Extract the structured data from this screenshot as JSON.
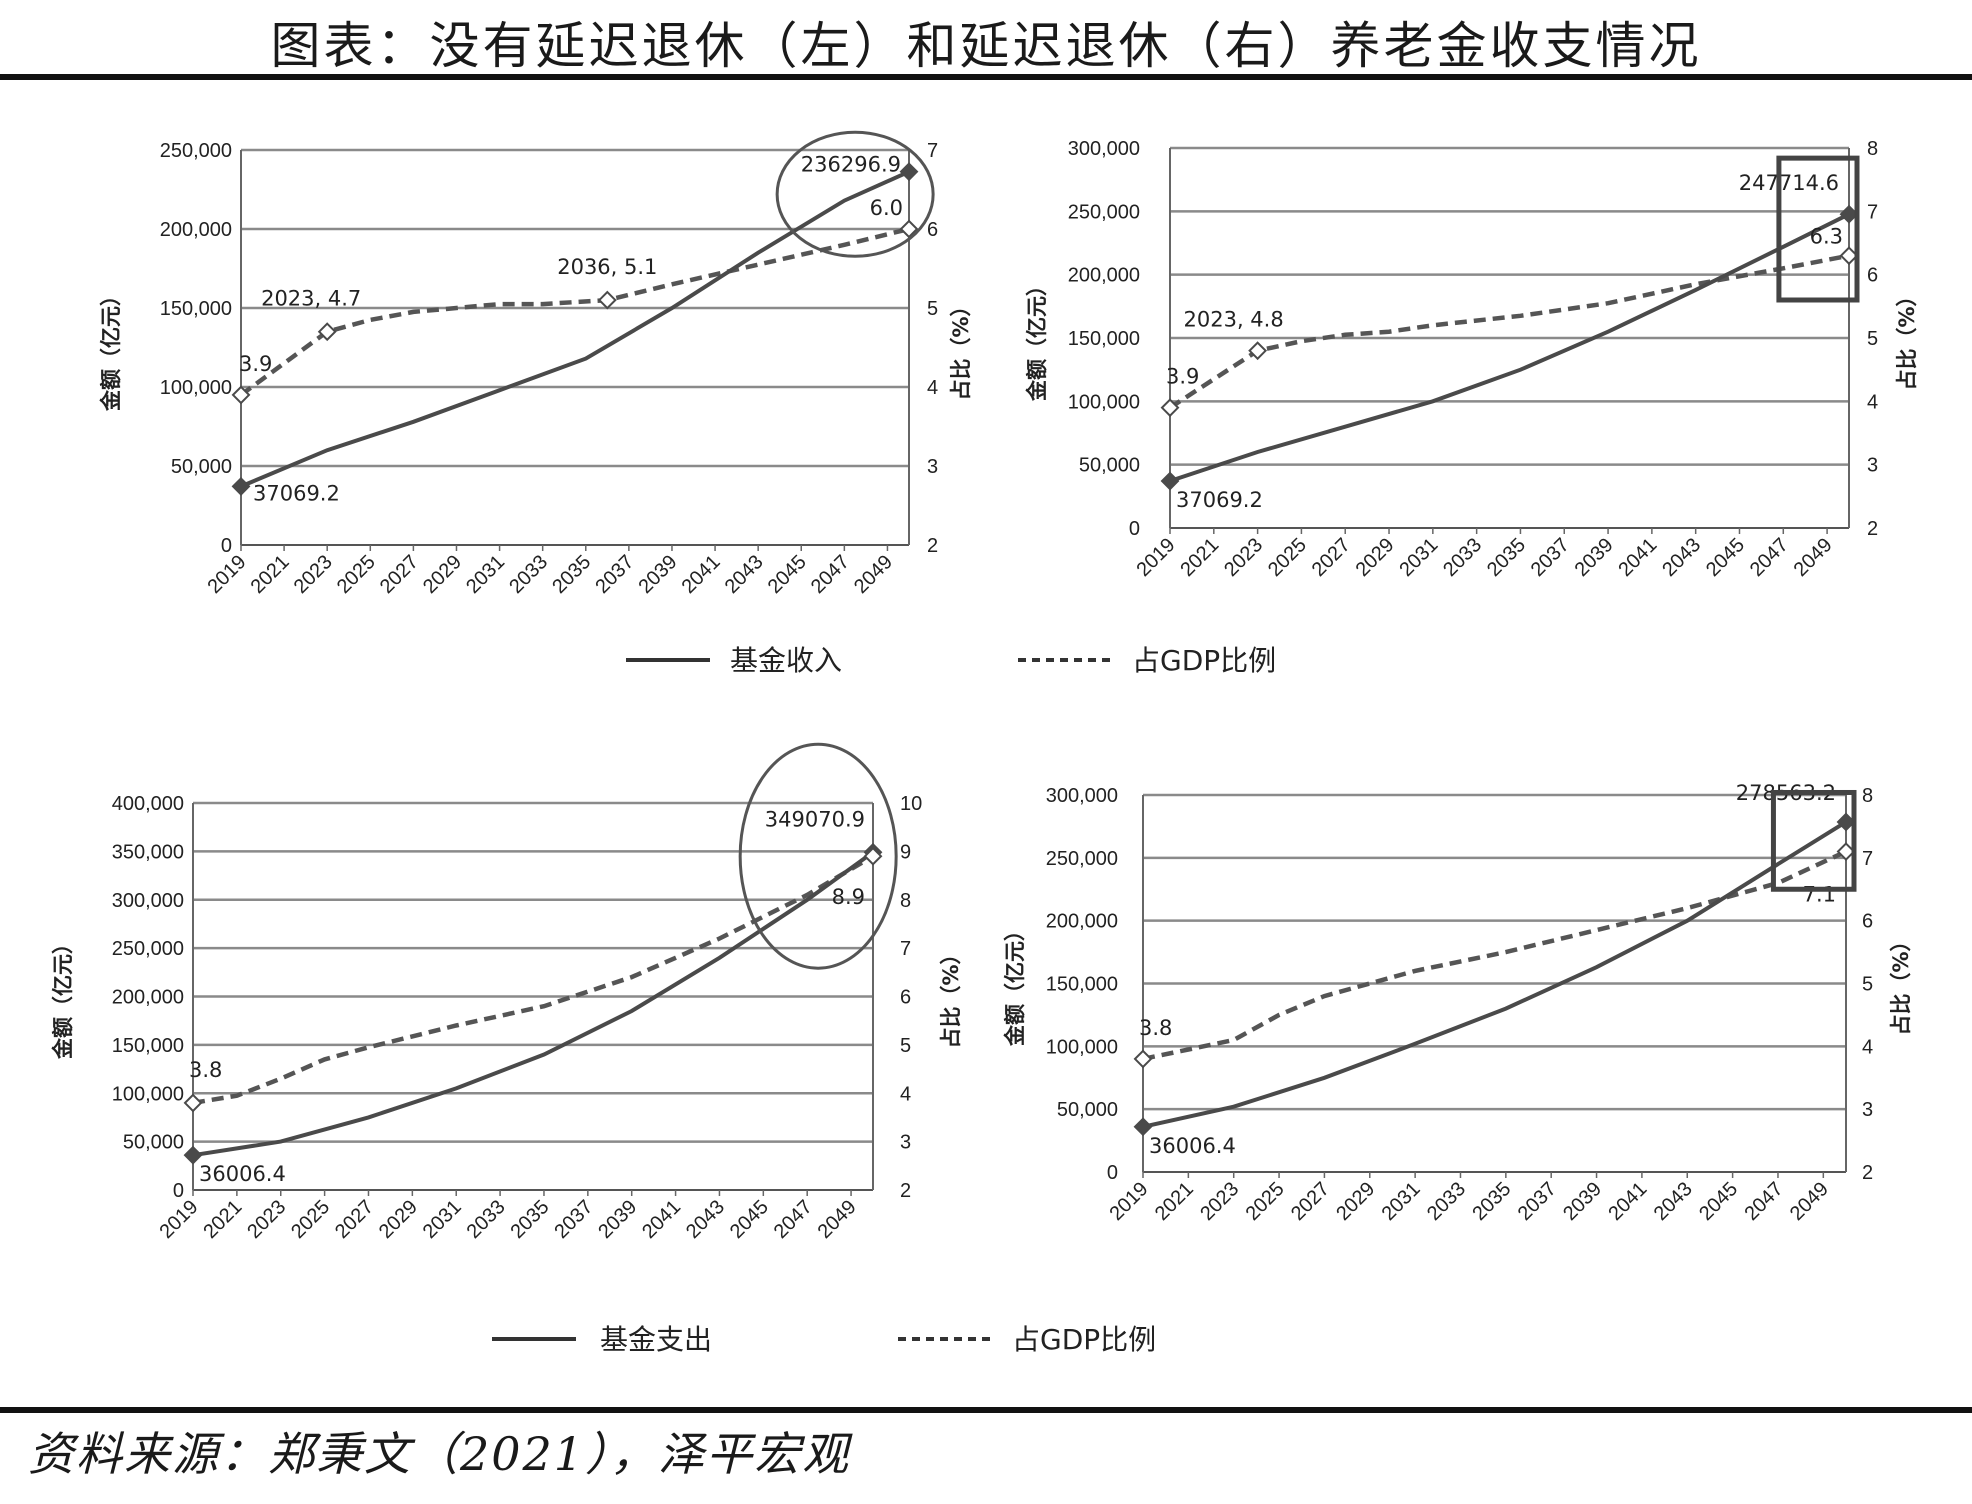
{
  "title": "图表：没有延迟退休（左）和延迟退休（右）养老金收支情况",
  "source": "资料来源：郑秉文（2021），泽平宏观",
  "legends": [
    {
      "solid": "基金收入",
      "dashed": "占GDP比例"
    },
    {
      "solid": "基金支出",
      "dashed": "占GDP比例"
    }
  ],
  "chart_data": [
    {
      "type": "line",
      "panel": "top-left",
      "ylabel": "金额（亿元）",
      "y2label": "占比（%）",
      "ylim": [
        0,
        250000
      ],
      "y2lim": [
        2,
        7
      ],
      "yticks": [
        0,
        50000,
        100000,
        150000,
        200000,
        250000
      ],
      "yticklabels": [
        "0",
        "50,000",
        "100,000",
        "150,000",
        "200,000",
        "250,000"
      ],
      "y2ticks": [
        2,
        3,
        4,
        5,
        6,
        7
      ],
      "xticks": [
        "2019",
        "2021",
        "2023",
        "2025",
        "2027",
        "2029",
        "2031",
        "2033",
        "2035",
        "2037",
        "2039",
        "2041",
        "2043",
        "2045",
        "2047",
        "2049"
      ],
      "series": [
        {
          "name": "基金收入",
          "axis": "left",
          "x": [
            2019,
            2023,
            2027,
            2031,
            2035,
            2039,
            2043,
            2047,
            2050
          ],
          "values": [
            37069.2,
            60000,
            78000,
            98000,
            118000,
            150000,
            185000,
            218000,
            236296.9
          ]
        },
        {
          "name": "占GDP比例",
          "axis": "right",
          "x": [
            2019,
            2021,
            2023,
            2025,
            2027,
            2029,
            2031,
            2033,
            2036,
            2039,
            2043,
            2047,
            2050
          ],
          "values": [
            3.9,
            4.3,
            4.7,
            4.85,
            4.95,
            5.0,
            5.05,
            5.05,
            5.1,
            5.3,
            5.55,
            5.8,
            6.0
          ]
        }
      ],
      "annotations": [
        {
          "text": "37069.2",
          "x": 2019,
          "series": 0
        },
        {
          "text": "236296.9",
          "x": 2050,
          "series": 0
        },
        {
          "text": "3.9",
          "x": 2019,
          "series": 1
        },
        {
          "text": "2023, 4.7",
          "x": 2023,
          "series": 1
        },
        {
          "text": "2036, 5.1",
          "x": 2036,
          "series": 1
        },
        {
          "text": "6.0",
          "x": 2050,
          "series": 1
        }
      ],
      "highlight": "ellipse",
      "grid": true
    },
    {
      "type": "line",
      "panel": "top-right",
      "ylabel": "金额（亿元）",
      "y2label": "占比（%）",
      "ylim": [
        0,
        300000
      ],
      "y2lim": [
        2,
        8
      ],
      "yticks": [
        0,
        50000,
        100000,
        150000,
        200000,
        250000,
        300000
      ],
      "yticklabels": [
        "0",
        "50,000",
        "100,000",
        "150,000",
        "200,000",
        "250,000",
        "300,000"
      ],
      "y2ticks": [
        2,
        3,
        4,
        5,
        6,
        7,
        8
      ],
      "xticks": [
        "2019",
        "2021",
        "2023",
        "2025",
        "2027",
        "2029",
        "2031",
        "2033",
        "2035",
        "2037",
        "2039",
        "2041",
        "2043",
        "2045",
        "2047",
        "2049"
      ],
      "series": [
        {
          "name": "基金收入",
          "axis": "left",
          "x": [
            2019,
            2023,
            2027,
            2031,
            2035,
            2039,
            2043,
            2047,
            2050
          ],
          "values": [
            37069.2,
            60000,
            80000,
            100000,
            125000,
            155000,
            188000,
            222000,
            247714.6
          ]
        },
        {
          "name": "占GDP比例",
          "axis": "right",
          "x": [
            2019,
            2021,
            2023,
            2025,
            2027,
            2029,
            2031,
            2035,
            2039,
            2043,
            2047,
            2050
          ],
          "values": [
            3.9,
            4.35,
            4.8,
            4.95,
            5.05,
            5.1,
            5.2,
            5.35,
            5.55,
            5.85,
            6.1,
            6.3
          ]
        }
      ],
      "annotations": [
        {
          "text": "37069.2",
          "x": 2019,
          "series": 0
        },
        {
          "text": "247714.6",
          "x": 2050,
          "series": 0
        },
        {
          "text": "3.9",
          "x": 2019,
          "series": 1
        },
        {
          "text": "2023, 4.8",
          "x": 2023,
          "series": 1
        },
        {
          "text": "6.3",
          "x": 2050,
          "series": 1
        }
      ],
      "highlight": "box",
      "grid": true
    },
    {
      "type": "line",
      "panel": "bottom-left",
      "ylabel": "金额（亿元）",
      "y2label": "占比（%）",
      "ylim": [
        0,
        400000
      ],
      "y2lim": [
        2,
        10
      ],
      "yticks": [
        0,
        50000,
        100000,
        150000,
        200000,
        250000,
        300000,
        350000,
        400000
      ],
      "yticklabels": [
        "0",
        "50,000",
        "100,000",
        "150,000",
        "200,000",
        "250,000",
        "300,000",
        "350,000",
        "400,000"
      ],
      "y2ticks": [
        2,
        3,
        4,
        5,
        6,
        7,
        8,
        9,
        10
      ],
      "xticks": [
        "2019",
        "2021",
        "2023",
        "2025",
        "2027",
        "2029",
        "2031",
        "2033",
        "2035",
        "2037",
        "2039",
        "2041",
        "2043",
        "2045",
        "2047",
        "2049"
      ],
      "series": [
        {
          "name": "基金支出",
          "axis": "left",
          "x": [
            2019,
            2023,
            2027,
            2031,
            2035,
            2039,
            2043,
            2047,
            2050
          ],
          "values": [
            36006.4,
            50000,
            75000,
            105000,
            140000,
            185000,
            240000,
            300000,
            349070.9
          ]
        },
        {
          "name": "占GDP比例",
          "axis": "right",
          "x": [
            2019,
            2021,
            2023,
            2025,
            2027,
            2031,
            2035,
            2039,
            2043,
            2047,
            2050
          ],
          "values": [
            3.8,
            3.95,
            4.3,
            4.7,
            4.95,
            5.4,
            5.8,
            6.4,
            7.2,
            8.1,
            8.9
          ]
        }
      ],
      "annotations": [
        {
          "text": "36006.4",
          "x": 2019,
          "series": 0
        },
        {
          "text": "349070.9",
          "x": 2050,
          "series": 0
        },
        {
          "text": "3.8",
          "x": 2019,
          "series": 1
        },
        {
          "text": "8.9",
          "x": 2050,
          "series": 1
        }
      ],
      "highlight": "ellipse",
      "grid": true
    },
    {
      "type": "line",
      "panel": "bottom-right",
      "ylabel": "金额（亿元）",
      "y2label": "占比（%）",
      "ylim": [
        0,
        300000
      ],
      "y2lim": [
        2,
        8
      ],
      "yticks": [
        0,
        50000,
        100000,
        150000,
        200000,
        250000,
        300000
      ],
      "yticklabels": [
        "0",
        "50,000",
        "100,000",
        "150,000",
        "200,000",
        "250,000",
        "300,000"
      ],
      "y2ticks": [
        2,
        3,
        4,
        5,
        6,
        7,
        8
      ],
      "xticks": [
        "2019",
        "2021",
        "2023",
        "2025",
        "2027",
        "2029",
        "2031",
        "2033",
        "2035",
        "2037",
        "2039",
        "2041",
        "2043",
        "2045",
        "2047",
        "2049"
      ],
      "series": [
        {
          "name": "基金支出",
          "axis": "left",
          "x": [
            2019,
            2023,
            2027,
            2031,
            2035,
            2039,
            2043,
            2047,
            2050
          ],
          "values": [
            36006.4,
            52000,
            75000,
            102000,
            130000,
            163000,
            200000,
            245000,
            278563.2
          ]
        },
        {
          "name": "占GDP比例",
          "axis": "right",
          "x": [
            2019,
            2021,
            2023,
            2025,
            2027,
            2029,
            2031,
            2035,
            2039,
            2043,
            2047,
            2050
          ],
          "values": [
            3.8,
            3.95,
            4.1,
            4.5,
            4.8,
            5.0,
            5.2,
            5.5,
            5.85,
            6.2,
            6.6,
            7.1
          ]
        }
      ],
      "annotations": [
        {
          "text": "36006.4",
          "x": 2019,
          "series": 0
        },
        {
          "text": "278563.2",
          "x": 2050,
          "series": 0
        },
        {
          "text": "3.8",
          "x": 2019,
          "series": 1
        },
        {
          "text": "7.1",
          "x": 2050,
          "series": 1
        }
      ],
      "highlight": "box",
      "grid": true
    }
  ]
}
